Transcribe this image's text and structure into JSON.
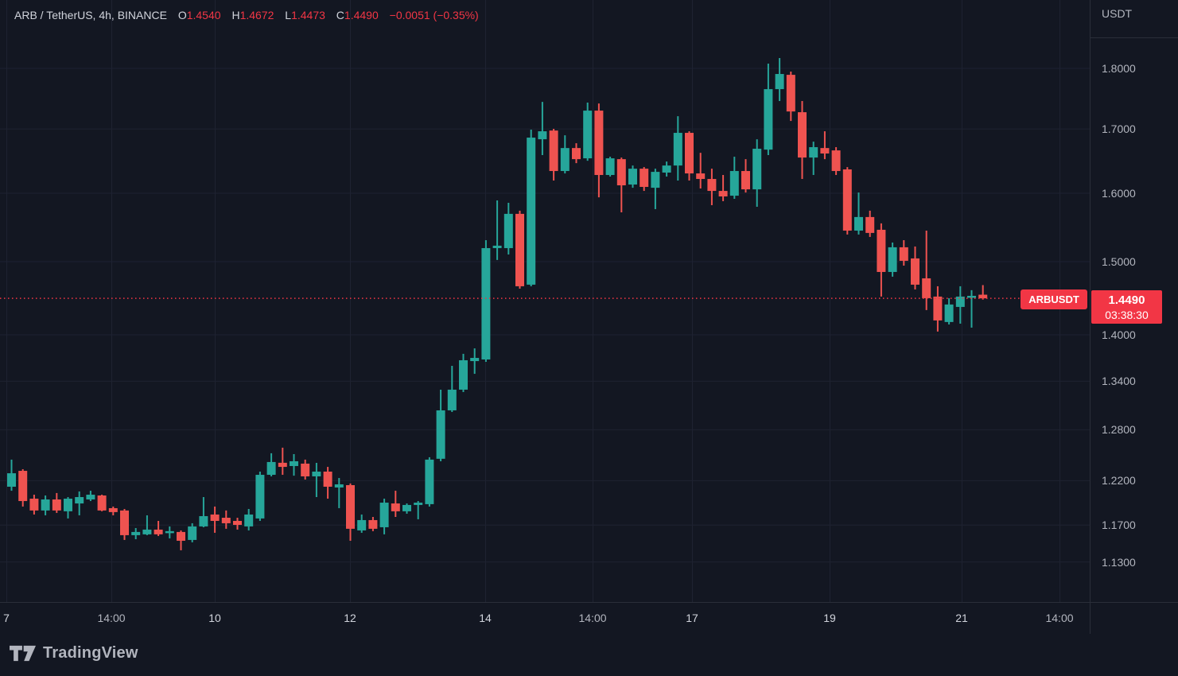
{
  "header": {
    "title": "ARB / TetherUS, 4h, BINANCE",
    "ohlc": [
      {
        "label": "O",
        "value": "1.4540"
      },
      {
        "label": "H",
        "value": "1.4672"
      },
      {
        "label": "L",
        "value": "1.4473"
      },
      {
        "label": "C",
        "value": "1.4490"
      }
    ],
    "change": "−0.0051 (−0.35%)"
  },
  "price_scale": {
    "currency_label": "USDT",
    "ticks": [
      {
        "label": "1.8000",
        "price": 1.8
      },
      {
        "label": "1.7000",
        "price": 1.7
      },
      {
        "label": "1.6000",
        "price": 1.6
      },
      {
        "label": "1.5000",
        "price": 1.5
      },
      {
        "label": "1.4000",
        "price": 1.4
      },
      {
        "label": "1.3400",
        "price": 1.34
      },
      {
        "label": "1.2800",
        "price": 1.28
      },
      {
        "label": "1.2200",
        "price": 1.22
      },
      {
        "label": "1.1700",
        "price": 1.17
      },
      {
        "label": "1.1300",
        "price": 1.13
      }
    ]
  },
  "time_scale": {
    "labels": [
      {
        "text": "7",
        "x": 8,
        "kind": "day"
      },
      {
        "text": "14:00",
        "x": 140,
        "kind": "time"
      },
      {
        "text": "10",
        "x": 270,
        "kind": "day"
      },
      {
        "text": "12",
        "x": 440,
        "kind": "day"
      },
      {
        "text": "14",
        "x": 610,
        "kind": "day"
      },
      {
        "text": "14:00",
        "x": 745,
        "kind": "time"
      },
      {
        "text": "17",
        "x": 870,
        "kind": "day"
      },
      {
        "text": "19",
        "x": 1043,
        "kind": "day"
      },
      {
        "text": "21",
        "x": 1209,
        "kind": "day"
      },
      {
        "text": "14:00",
        "x": 1332,
        "kind": "time"
      }
    ]
  },
  "price_line": {
    "symbol_label": "ARBUSDT",
    "price": "1.4490",
    "countdown": "03:38:30",
    "value": 1.449
  },
  "footer": {
    "brand": "TradingView"
  },
  "colors": {
    "background": "#131722",
    "grid": "#1e2231",
    "border": "#2a2e39",
    "up": "#26a69a",
    "down": "#ef5350",
    "accent_red": "#f23645",
    "axis_text": "#b2b5be",
    "header_text": "#d1d4dc"
  },
  "chart_data": {
    "type": "candlestick",
    "symbol": "ARBUSDT",
    "exchange": "BINANCE",
    "interval": "4h",
    "currency": "USDT",
    "scale": "logarithmic",
    "legend_position": "top-left",
    "grid": true,
    "last_price": 1.449,
    "last_change": "−0.0051 (−0.35%)",
    "current_bar": {
      "open": 1.454,
      "high": 1.4672,
      "low": 1.4473,
      "close": 1.449
    },
    "countdown": "03:38:30",
    "y_ticks": [
      1.8,
      1.7,
      1.6,
      1.5,
      1.4,
      1.34,
      1.28,
      1.22,
      1.17,
      1.13
    ],
    "y_range_visible": [
      1.11,
      1.86
    ],
    "x_labels": [
      "7",
      "14:00",
      "10",
      "12",
      "14",
      "14:00",
      "17",
      "19",
      "21",
      "14:00"
    ],
    "up_color": "#26a69a",
    "down_color": "#ef5350",
    "candles_ohlc_order": [
      "open",
      "high",
      "low",
      "close"
    ],
    "candles": [
      [
        1.2131,
        1.2445,
        1.2085,
        1.2286
      ],
      [
        1.2314,
        1.2333,
        1.1906,
        1.1968
      ],
      [
        1.1995,
        1.204,
        1.1817,
        1.1862
      ],
      [
        1.1862,
        1.2031,
        1.1808,
        1.1986
      ],
      [
        1.1986,
        1.2059,
        1.1835,
        1.1862
      ],
      [
        1.1853,
        1.2013,
        1.1773,
        1.1995
      ],
      [
        1.1941,
        1.2077,
        1.1808,
        1.2013
      ],
      [
        1.1986,
        1.2085,
        1.1968,
        1.204
      ],
      [
        1.2031,
        1.204,
        1.1853,
        1.1862
      ],
      [
        1.1888,
        1.1906,
        1.1808,
        1.1844
      ],
      [
        1.1862,
        1.1879,
        1.1537,
        1.1589
      ],
      [
        1.1589,
        1.1667,
        1.1545,
        1.1624
      ],
      [
        1.1598,
        1.1808,
        1.1589,
        1.165
      ],
      [
        1.165,
        1.1746,
        1.158,
        1.1598
      ],
      [
        1.1624,
        1.1685,
        1.1554,
        1.1633
      ],
      [
        1.1624,
        1.1641,
        1.1425,
        1.1528
      ],
      [
        1.1537,
        1.172,
        1.1511,
        1.1685
      ],
      [
        1.1685,
        1.2013,
        1.1676,
        1.1799
      ],
      [
        1.1817,
        1.1906,
        1.1615,
        1.1746
      ],
      [
        1.1781,
        1.1862,
        1.1659,
        1.172
      ],
      [
        1.1746,
        1.1781,
        1.165,
        1.1702
      ],
      [
        1.1685,
        1.1879,
        1.1641,
        1.1817
      ],
      [
        1.1773,
        1.2305,
        1.1746,
        1.2268
      ],
      [
        1.2268,
        1.252,
        1.225,
        1.2417
      ],
      [
        1.2408,
        1.2586,
        1.2268,
        1.236
      ],
      [
        1.237,
        1.251,
        1.2258,
        1.2426
      ],
      [
        1.2398,
        1.2445,
        1.2213,
        1.225
      ],
      [
        1.225,
        1.2407,
        1.2013,
        1.2305
      ],
      [
        1.2305,
        1.236,
        1.1995,
        1.2131
      ],
      [
        1.2122,
        1.2231,
        1.1888,
        1.2158
      ],
      [
        1.2149,
        1.2168,
        1.1528,
        1.1659
      ],
      [
        1.1641,
        1.1817,
        1.1615,
        1.1755
      ],
      [
        1.1755,
        1.179,
        1.1633,
        1.1659
      ],
      [
        1.1676,
        1.1995,
        1.1598,
        1.195
      ],
      [
        1.1941,
        1.2085,
        1.179,
        1.1853
      ],
      [
        1.1853,
        1.1941,
        1.1826,
        1.1924
      ],
      [
        1.1924,
        1.1968,
        1.1764,
        1.195
      ],
      [
        1.1933,
        1.2473,
        1.1906,
        1.2445
      ],
      [
        1.2455,
        1.3294,
        1.2426,
        1.3037
      ],
      [
        1.3037,
        1.3596,
        1.3017,
        1.3294
      ],
      [
        1.3294,
        1.3751,
        1.3264,
        1.3668
      ],
      [
        1.3657,
        1.3822,
        1.3494,
        1.3698
      ],
      [
        1.3678,
        1.5307,
        1.3647,
        1.5193
      ],
      [
        1.5193,
        1.5892,
        1.5024,
        1.5228
      ],
      [
        1.5193,
        1.5857,
        1.5102,
        1.5692
      ],
      [
        1.5692,
        1.5739,
        1.4623,
        1.4656
      ],
      [
        1.4678,
        1.6989,
        1.4656,
        1.6862
      ],
      [
        1.6836,
        1.744,
        1.6586,
        1.6963
      ],
      [
        1.6975,
        1.7002,
        1.6193,
        1.6339
      ],
      [
        1.6339,
        1.6899,
        1.6302,
        1.6697
      ],
      [
        1.6697,
        1.6773,
        1.6461,
        1.6523
      ],
      [
        1.6536,
        1.7428,
        1.6498,
        1.7297
      ],
      [
        1.7297,
        1.7414,
        1.5939,
        1.6278
      ],
      [
        1.6278,
        1.6561,
        1.6254,
        1.6536
      ],
      [
        1.6523,
        1.6548,
        1.5715,
        1.612
      ],
      [
        1.6132,
        1.6424,
        1.6083,
        1.6375
      ],
      [
        1.6375,
        1.64,
        1.6035,
        1.6096
      ],
      [
        1.6083,
        1.6375,
        1.5762,
        1.6326
      ],
      [
        1.6315,
        1.6486,
        1.6254,
        1.6424
      ],
      [
        1.6424,
        1.7206,
        1.6193,
        1.6938
      ],
      [
        1.6938,
        1.6963,
        1.6193,
        1.6302
      ],
      [
        1.6302,
        1.6622,
        1.6072,
        1.6217
      ],
      [
        1.6217,
        1.6375,
        1.5821,
        1.6035
      ],
      [
        1.6035,
        1.6278,
        1.5881,
        1.5952
      ],
      [
        1.5963,
        1.6561,
        1.5916,
        1.6339
      ],
      [
        1.6339,
        1.6523,
        1.6011,
        1.6059
      ],
      [
        1.6059,
        1.6836,
        1.5797,
        1.6686
      ],
      [
        1.6672,
        1.8081,
        1.6586,
        1.7651
      ],
      [
        1.7651,
        1.8176,
        1.7454,
        1.7905
      ],
      [
        1.7891,
        1.7946,
        1.7129,
        1.7283
      ],
      [
        1.7271,
        1.7454,
        1.6217,
        1.6548
      ],
      [
        1.6548,
        1.6798,
        1.6278,
        1.6711
      ],
      [
        1.6697,
        1.6963,
        1.6523,
        1.6611
      ],
      [
        1.666,
        1.6711,
        1.6278,
        1.6339
      ],
      [
        1.6364,
        1.64,
        1.5389,
        1.5446
      ],
      [
        1.5446,
        1.6011,
        1.5389,
        1.5645
      ],
      [
        1.5645,
        1.5739,
        1.5354,
        1.5412
      ],
      [
        1.5458,
        1.5551,
        1.4514,
        1.4855
      ],
      [
        1.4855,
        1.5273,
        1.4789,
        1.5205
      ],
      [
        1.5205,
        1.5307,
        1.4944,
        1.5012
      ],
      [
        1.5046,
        1.5216,
        1.4612,
        1.4678
      ],
      [
        1.4766,
        1.5446,
        1.433,
        1.4492
      ],
      [
        1.4514,
        1.4656,
        1.4043,
        1.4191
      ],
      [
        1.417,
        1.4492,
        1.4137,
        1.4406
      ],
      [
        1.4373,
        1.4656,
        1.4148,
        1.4514
      ],
      [
        1.4503,
        1.4602,
        1.4095,
        1.4524
      ],
      [
        1.454,
        1.4672,
        1.4473,
        1.449
      ]
    ]
  }
}
